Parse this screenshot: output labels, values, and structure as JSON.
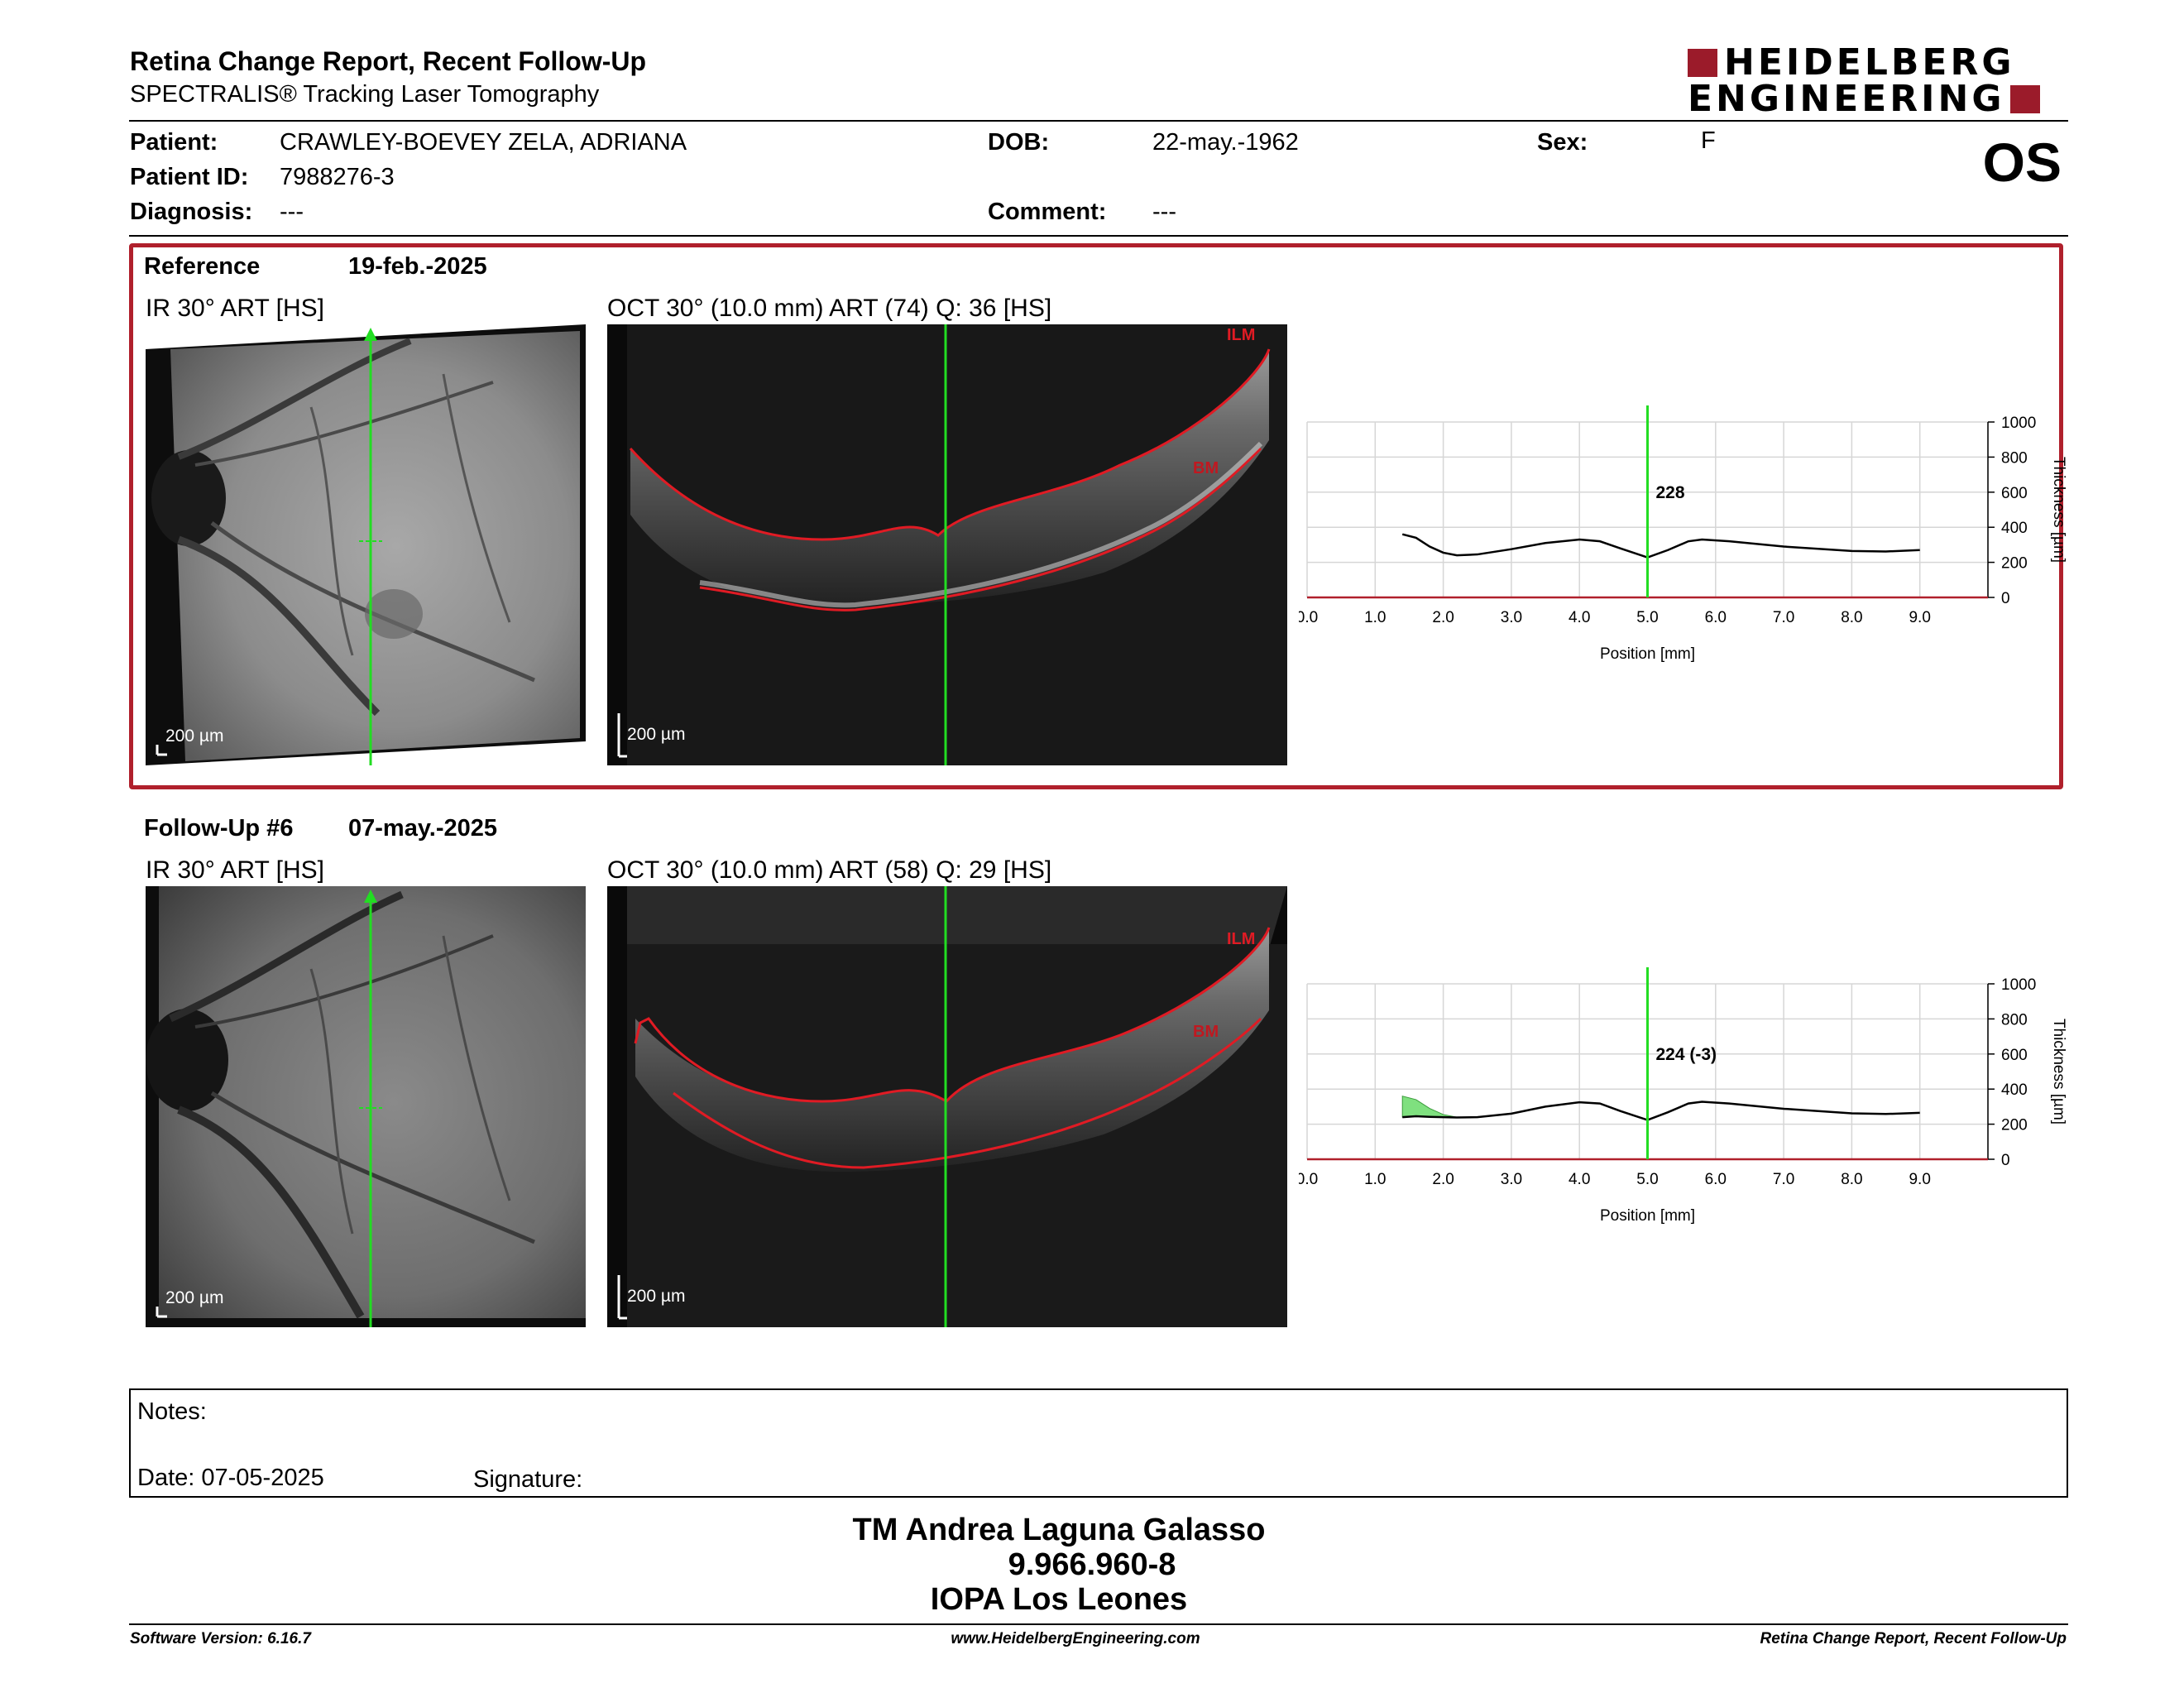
{
  "header": {
    "report_title": "Retina Change Report, Recent Follow-Up",
    "device": "SPECTRALIS® Tracking Laser Tomography",
    "logo_line1": "HEIDELBERG",
    "logo_line2": "ENGINEERING",
    "eye": "OS"
  },
  "patient": {
    "patient_label": "Patient:",
    "patient_value": "CRAWLEY-BOEVEY ZELA, ADRIANA",
    "id_label": "Patient ID:",
    "id_value": "7988276-3",
    "diagnosis_label": "Diagnosis:",
    "diagnosis_value": "---",
    "dob_label": "DOB:",
    "dob_value": "22-may.-1962",
    "comment_label": "Comment:",
    "comment_value": "---",
    "sex_label": "Sex:",
    "sex_value": "F"
  },
  "reference": {
    "label": "Reference",
    "date": "19-feb.-2025",
    "ir_title": "IR 30° ART [HS]",
    "oct_title": "OCT 30° (10.0 mm) ART (74) Q: 36 [HS]",
    "ir_scale": "200 µm",
    "oct_scale": "200 µm",
    "ilm": "ILM",
    "bm": "BM"
  },
  "followup": {
    "label": "Follow-Up #6",
    "date": "07-may.-2025",
    "ir_title": "IR 30° ART [HS]",
    "oct_title": "OCT 30° (10.0 mm) ART (58) Q: 29 [HS]",
    "ir_scale": "200 µm",
    "oct_scale": "200 µm",
    "ilm": "ILM",
    "bm": "BM"
  },
  "chart_data": [
    {
      "type": "line",
      "xlabel": "Position [mm]",
      "ylabel": "Thickness [µm]",
      "xlim": [
        0,
        10
      ],
      "ylim": [
        0,
        1000
      ],
      "x_ticks": [
        "0.0",
        "1.0",
        "2.0",
        "3.0",
        "4.0",
        "5.0",
        "6.0",
        "7.0",
        "8.0",
        "9.0"
      ],
      "y_ticks": [
        "0",
        "200",
        "400",
        "600",
        "800",
        "1000"
      ],
      "marker_x": 5.0,
      "marker_label": "228",
      "grid": true,
      "series": [
        {
          "x": [
            1.4,
            1.6,
            1.8,
            2.0,
            2.2,
            2.5,
            3.0,
            3.5,
            4.0,
            4.3,
            4.6,
            5.0,
            5.3,
            5.6,
            5.8,
            6.2,
            7.0,
            8.0,
            8.5,
            9.0
          ],
          "values": [
            360,
            340,
            290,
            255,
            240,
            245,
            275,
            310,
            330,
            320,
            280,
            228,
            270,
            320,
            330,
            320,
            290,
            265,
            262,
            270
          ]
        }
      ]
    },
    {
      "type": "line",
      "xlabel": "Position [mm]",
      "ylabel": "Thickness [µm]",
      "xlim": [
        0,
        10
      ],
      "ylim": [
        0,
        1000
      ],
      "x_ticks": [
        "0.0",
        "1.0",
        "2.0",
        "3.0",
        "4.0",
        "5.0",
        "6.0",
        "7.0",
        "8.0",
        "9.0"
      ],
      "y_ticks": [
        "0",
        "200",
        "400",
        "600",
        "800",
        "1000"
      ],
      "marker_x": 5.0,
      "marker_label": "224 (-3)",
      "grid": true,
      "series": [
        {
          "x": [
            1.4,
            1.6,
            1.8,
            2.0,
            2.2,
            2.5,
            3.0,
            3.5,
            4.0,
            4.3,
            4.6,
            5.0,
            5.3,
            5.6,
            5.8,
            6.2,
            7.0,
            8.0,
            8.5,
            9.0
          ],
          "values": [
            240,
            245,
            242,
            240,
            238,
            240,
            260,
            300,
            325,
            318,
            275,
            224,
            268,
            318,
            328,
            318,
            288,
            262,
            258,
            265
          ]
        }
      ],
      "reference_series": [
        360,
        340,
        290,
        255,
        240,
        245,
        275,
        310,
        330,
        320,
        280,
        228,
        270,
        320,
        330,
        320,
        290,
        265,
        262,
        270
      ]
    }
  ],
  "notes": {
    "notes_label": "Notes:",
    "date_label": "Date: 07-05-2025",
    "signature_label": "Signature:"
  },
  "signer": {
    "name": "TM Andrea Laguna Galasso",
    "id": "9.966.960-8",
    "institution": "IOPA Los Leones"
  },
  "footer": {
    "software": "Software Version: 6.16.7",
    "website": "www.HeidelbergEngineering.com",
    "report": "Retina Change Report, Recent Follow-Up"
  },
  "colors": {
    "accent_red": "#b0202c",
    "logo_red": "#9b1b2a",
    "scan_green": "#22dd22",
    "increase_fill": "#7fe07f"
  }
}
